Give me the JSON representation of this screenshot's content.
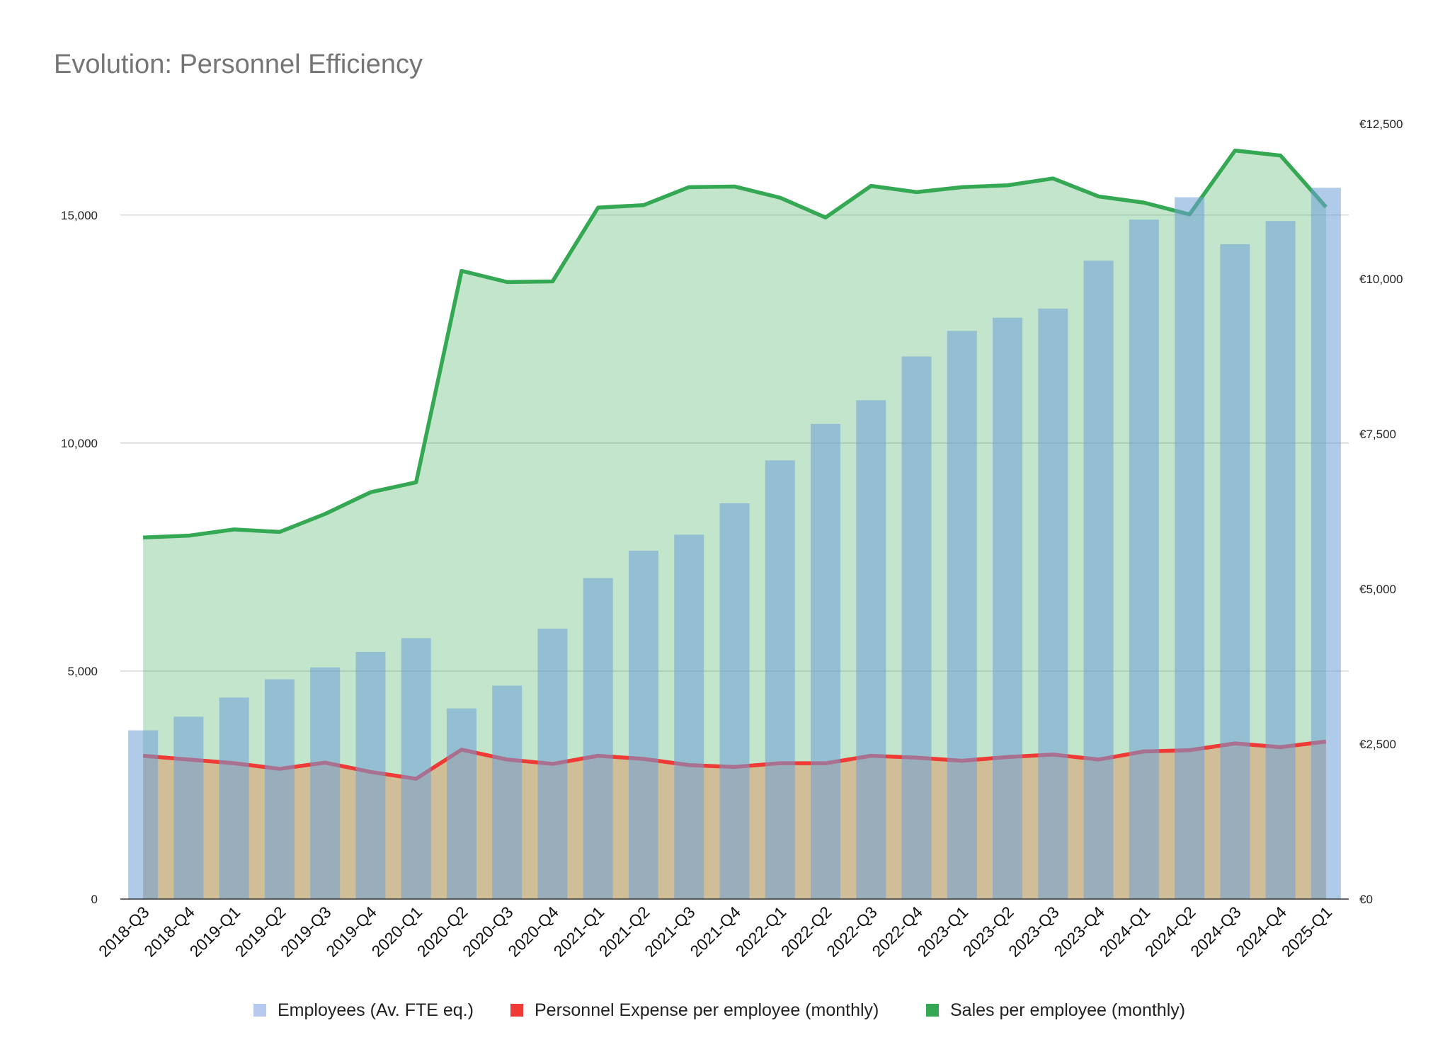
{
  "chart_data": {
    "type": "bar",
    "title": "Evolution: Personnel Efficiency",
    "categories": [
      "2018-Q3",
      "2018-Q4",
      "2019-Q1",
      "2019-Q2",
      "2019-Q3",
      "2019-Q4",
      "2020-Q1",
      "2020-Q2",
      "2020-Q3",
      "2020-Q4",
      "2021-Q1",
      "2021-Q2",
      "2021-Q3",
      "2021-Q4",
      "2022-Q1",
      "2022-Q2",
      "2022-Q3",
      "2022-Q4",
      "2023-Q1",
      "2023-Q2",
      "2023-Q3",
      "2023-Q4",
      "2024-Q1",
      "2024-Q2",
      "2024-Q3",
      "2024-Q4",
      "2025-Q1"
    ],
    "series": [
      {
        "name": "Employees (Av. FTE eq.)",
        "type": "bar",
        "axis": "left",
        "color": "#b7c9ef",
        "values": [
          3700,
          4000,
          4420,
          4820,
          5080,
          5420,
          5720,
          4180,
          4680,
          5930,
          7040,
          7640,
          7990,
          8680,
          9620,
          10420,
          10940,
          11900,
          12460,
          12750,
          12950,
          14000,
          14900,
          15390,
          14360,
          14870,
          15600
        ]
      },
      {
        "name": "Personnel Expense per employee (monthly)",
        "type": "line",
        "axis": "right",
        "color": "#f03a36",
        "values": [
          2310,
          2250,
          2190,
          2100,
          2200,
          2050,
          1940,
          2410,
          2250,
          2180,
          2310,
          2260,
          2160,
          2130,
          2190,
          2190,
          2310,
          2280,
          2230,
          2290,
          2330,
          2250,
          2380,
          2400,
          2510,
          2450,
          2540
        ]
      },
      {
        "name": "Sales per employee (monthly)",
        "type": "area",
        "axis": "right",
        "color": "#34a853",
        "values": [
          5830,
          5860,
          5960,
          5920,
          6210,
          6560,
          6720,
          10130,
          9950,
          9960,
          11150,
          11190,
          11480,
          11490,
          11310,
          10990,
          11500,
          11400,
          11480,
          11510,
          11620,
          11330,
          11230,
          11040,
          12070,
          11990,
          11160
        ]
      }
    ],
    "y_left": {
      "ticks": [
        "0",
        "5,000",
        "10,000",
        "15,000"
      ],
      "ylim": [
        0,
        17000
      ]
    },
    "y_right": {
      "ticks": [
        "€0",
        "€2,500",
        "€5,000",
        "€7,500",
        "€10,000",
        "€12,500"
      ],
      "ylim": [
        0,
        12500
      ]
    },
    "gridlines": true,
    "legend_position": "bottom"
  }
}
